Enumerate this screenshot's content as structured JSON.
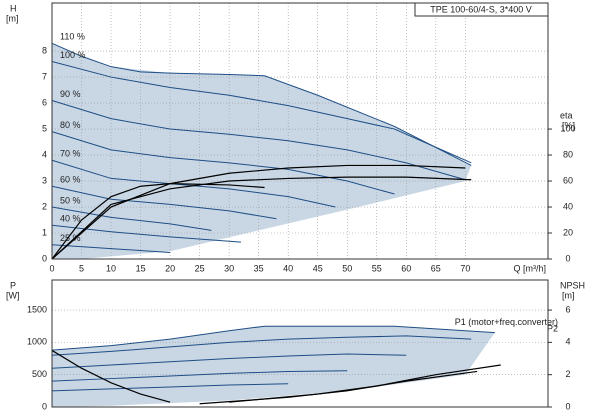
{
  "chart_data": [
    {
      "type": "line",
      "title": "TPE 100-60/4-S, 3*400 V",
      "y_label": "H",
      "y_unit": "[m]",
      "y2_label": "eta",
      "y2_unit": "[%]",
      "x_label": "Q [m³/h]",
      "xlim": [
        0,
        84
      ],
      "xticks": [
        0,
        5,
        10,
        15,
        20,
        25,
        30,
        35,
        40,
        45,
        50,
        55,
        60,
        65,
        70
      ],
      "ylim": [
        0,
        9.85
      ],
      "yticks": [
        0,
        1,
        2,
        3,
        4,
        5,
        6,
        7,
        8
      ],
      "y2lim": [
        0,
        197
      ],
      "y2ticks": [
        0,
        20,
        40,
        60,
        80,
        100
      ],
      "grid": true,
      "envelope": {
        "color": "#c9d7e5",
        "x": [
          0,
          5,
          10,
          20,
          36,
          45,
          58,
          71,
          70,
          50,
          35,
          20,
          5,
          0
        ],
        "values": [
          8.3,
          7.8,
          7.4,
          7.15,
          7.05,
          6.3,
          5.1,
          3.6,
          3.0,
          1.9,
          1.1,
          0.3,
          0,
          0
        ]
      },
      "series": [
        {
          "name": "110 %",
          "color": "#1f4e85",
          "x": [
            0,
            5,
            10,
            15,
            20,
            30,
            36,
            45,
            58,
            71
          ],
          "values": [
            8.3,
            7.8,
            7.4,
            7.2,
            7.15,
            7.1,
            7.05,
            6.3,
            5.1,
            3.6
          ]
        },
        {
          "name": "100 %",
          "color": "#1f4e85",
          "x": [
            0,
            10,
            20,
            30,
            40,
            50,
            58,
            65,
            71
          ],
          "values": [
            7.6,
            7.0,
            6.6,
            6.3,
            5.9,
            5.4,
            5.0,
            4.3,
            3.7
          ]
        },
        {
          "name": "90 %",
          "color": "#1f4e85",
          "x": [
            0,
            10,
            20,
            30,
            40,
            50,
            60,
            70
          ],
          "values": [
            6.1,
            5.4,
            5.0,
            4.8,
            4.55,
            4.2,
            3.7,
            3.05
          ]
        },
        {
          "name": "80 %",
          "color": "#1f4e85",
          "x": [
            0,
            10,
            20,
            30,
            40,
            50,
            58
          ],
          "values": [
            4.9,
            4.2,
            3.9,
            3.7,
            3.45,
            3.0,
            2.5
          ]
        },
        {
          "name": "70 %",
          "color": "#1f4e85",
          "x": [
            0,
            10,
            20,
            30,
            40,
            48
          ],
          "values": [
            3.8,
            3.1,
            2.9,
            2.7,
            2.4,
            2.0
          ]
        },
        {
          "name": "60 %",
          "color": "#1f4e85",
          "x": [
            0,
            10,
            20,
            30,
            38
          ],
          "values": [
            2.8,
            2.3,
            2.1,
            1.85,
            1.55
          ]
        },
        {
          "name": "50 %",
          "color": "#1f4e85",
          "x": [
            0,
            10,
            20,
            27
          ],
          "values": [
            2.0,
            1.6,
            1.35,
            1.1
          ]
        },
        {
          "name": "40 %",
          "color": "#1f4e85",
          "x": [
            0,
            10,
            20,
            32
          ],
          "values": [
            1.3,
            1.05,
            0.85,
            0.65
          ]
        },
        {
          "name": "25 %",
          "color": "#1f4e85",
          "x": [
            0,
            10,
            20
          ],
          "values": [
            0.55,
            0.4,
            0.25
          ]
        },
        {
          "color": "#000000",
          "axis": "y2",
          "x": [
            0,
            10,
            20,
            30,
            40,
            50,
            60,
            70
          ],
          "values": [
            0,
            40,
            58,
            66,
            70,
            72,
            72,
            70
          ]
        },
        {
          "color": "#000000",
          "axis": "y2",
          "x": [
            0,
            10,
            20,
            30,
            40,
            50,
            60,
            71
          ],
          "values": [
            0,
            42,
            54,
            60,
            62,
            63,
            63,
            61
          ]
        },
        {
          "color": "#000000",
          "axis": "y2",
          "x": [
            0,
            5,
            10,
            15,
            20,
            30,
            36
          ],
          "values": [
            0,
            30,
            48,
            56,
            58,
            57,
            55
          ]
        }
      ]
    },
    {
      "type": "line",
      "y_label": "P",
      "y_unit": "[W]",
      "y2_label": "NPSH",
      "y2_unit": "[m]",
      "xlim": [
        0,
        84
      ],
      "ylim": [
        0,
        1965
      ],
      "yticks": [
        0,
        500,
        1000,
        1500
      ],
      "y2lim": [
        0,
        7.86
      ],
      "y2ticks": [
        0,
        2,
        4,
        6
      ],
      "grid": true,
      "envelope": {
        "color": "#c9d7e5",
        "x": [
          0,
          10,
          20,
          36,
          58,
          75,
          70,
          50,
          30,
          10,
          0
        ],
        "values": [
          880,
          950,
          1050,
          1250,
          1250,
          1150,
          500,
          250,
          100,
          20,
          0
        ]
      },
      "series": [
        {
          "name": "P1 (motor+freq.converter)",
          "color": "#1f4e85",
          "x": [
            0,
            10,
            20,
            30,
            36,
            50,
            58,
            75
          ],
          "values": [
            880,
            950,
            1050,
            1180,
            1250,
            1250,
            1250,
            1150
          ]
        },
        {
          "name": "P2",
          "color": "#1f4e85",
          "x": [
            0,
            10,
            20,
            30,
            40,
            50,
            60,
            71
          ],
          "values": [
            800,
            860,
            930,
            1000,
            1050,
            1080,
            1100,
            1050
          ]
        },
        {
          "color": "#1f4e85",
          "x": [
            0,
            10,
            20,
            30,
            40,
            50,
            60
          ],
          "values": [
            600,
            650,
            700,
            750,
            790,
            820,
            800
          ]
        },
        {
          "color": "#1f4e85",
          "x": [
            0,
            10,
            20,
            30,
            40,
            50
          ],
          "values": [
            400,
            440,
            480,
            520,
            550,
            560
          ]
        },
        {
          "color": "#1f4e85",
          "x": [
            0,
            10,
            20,
            30,
            40
          ],
          "values": [
            250,
            280,
            310,
            340,
            360
          ]
        },
        {
          "color": "#000000",
          "axis": "y2",
          "x": [
            30,
            45,
            55,
            65,
            76
          ],
          "values": [
            0.3,
            0.8,
            1.3,
            2.0,
            2.6
          ]
        },
        {
          "color": "#000000",
          "axis": "y2",
          "x": [
            25,
            40,
            50,
            60,
            72
          ],
          "values": [
            0.2,
            0.6,
            1.0,
            1.6,
            2.2
          ]
        },
        {
          "color": "#000000",
          "axis": "y2",
          "x": [
            0,
            5,
            10,
            15,
            20
          ],
          "values": [
            3.5,
            2.4,
            1.5,
            0.8,
            0.3
          ]
        }
      ]
    }
  ]
}
